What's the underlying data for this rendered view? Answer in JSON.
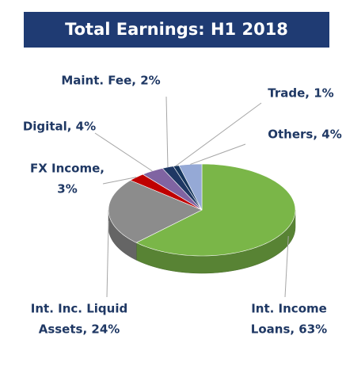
{
  "chart_data": {
    "type": "pie",
    "title": "Total Earnings: H1 2018",
    "values": [
      63,
      24,
      3,
      4,
      2,
      1,
      4
    ],
    "value_labels": [
      [
        "Int. Income",
        "Loans, 63%"
      ],
      [
        "Int. Inc. Liquid",
        "Assets, 24%"
      ],
      [
        "FX Income,",
        "3%"
      ],
      [
        "Digital, 4%"
      ],
      [
        "Maint. Fee, 2%"
      ],
      [
        "Trade, 1%"
      ],
      [
        "Others, 4%"
      ]
    ],
    "colors": [
      "#7ab648",
      "#8c8c8c",
      "#c00000",
      "#8064a2",
      "#1f3864",
      "#17375e",
      "#95a9d6"
    ]
  }
}
